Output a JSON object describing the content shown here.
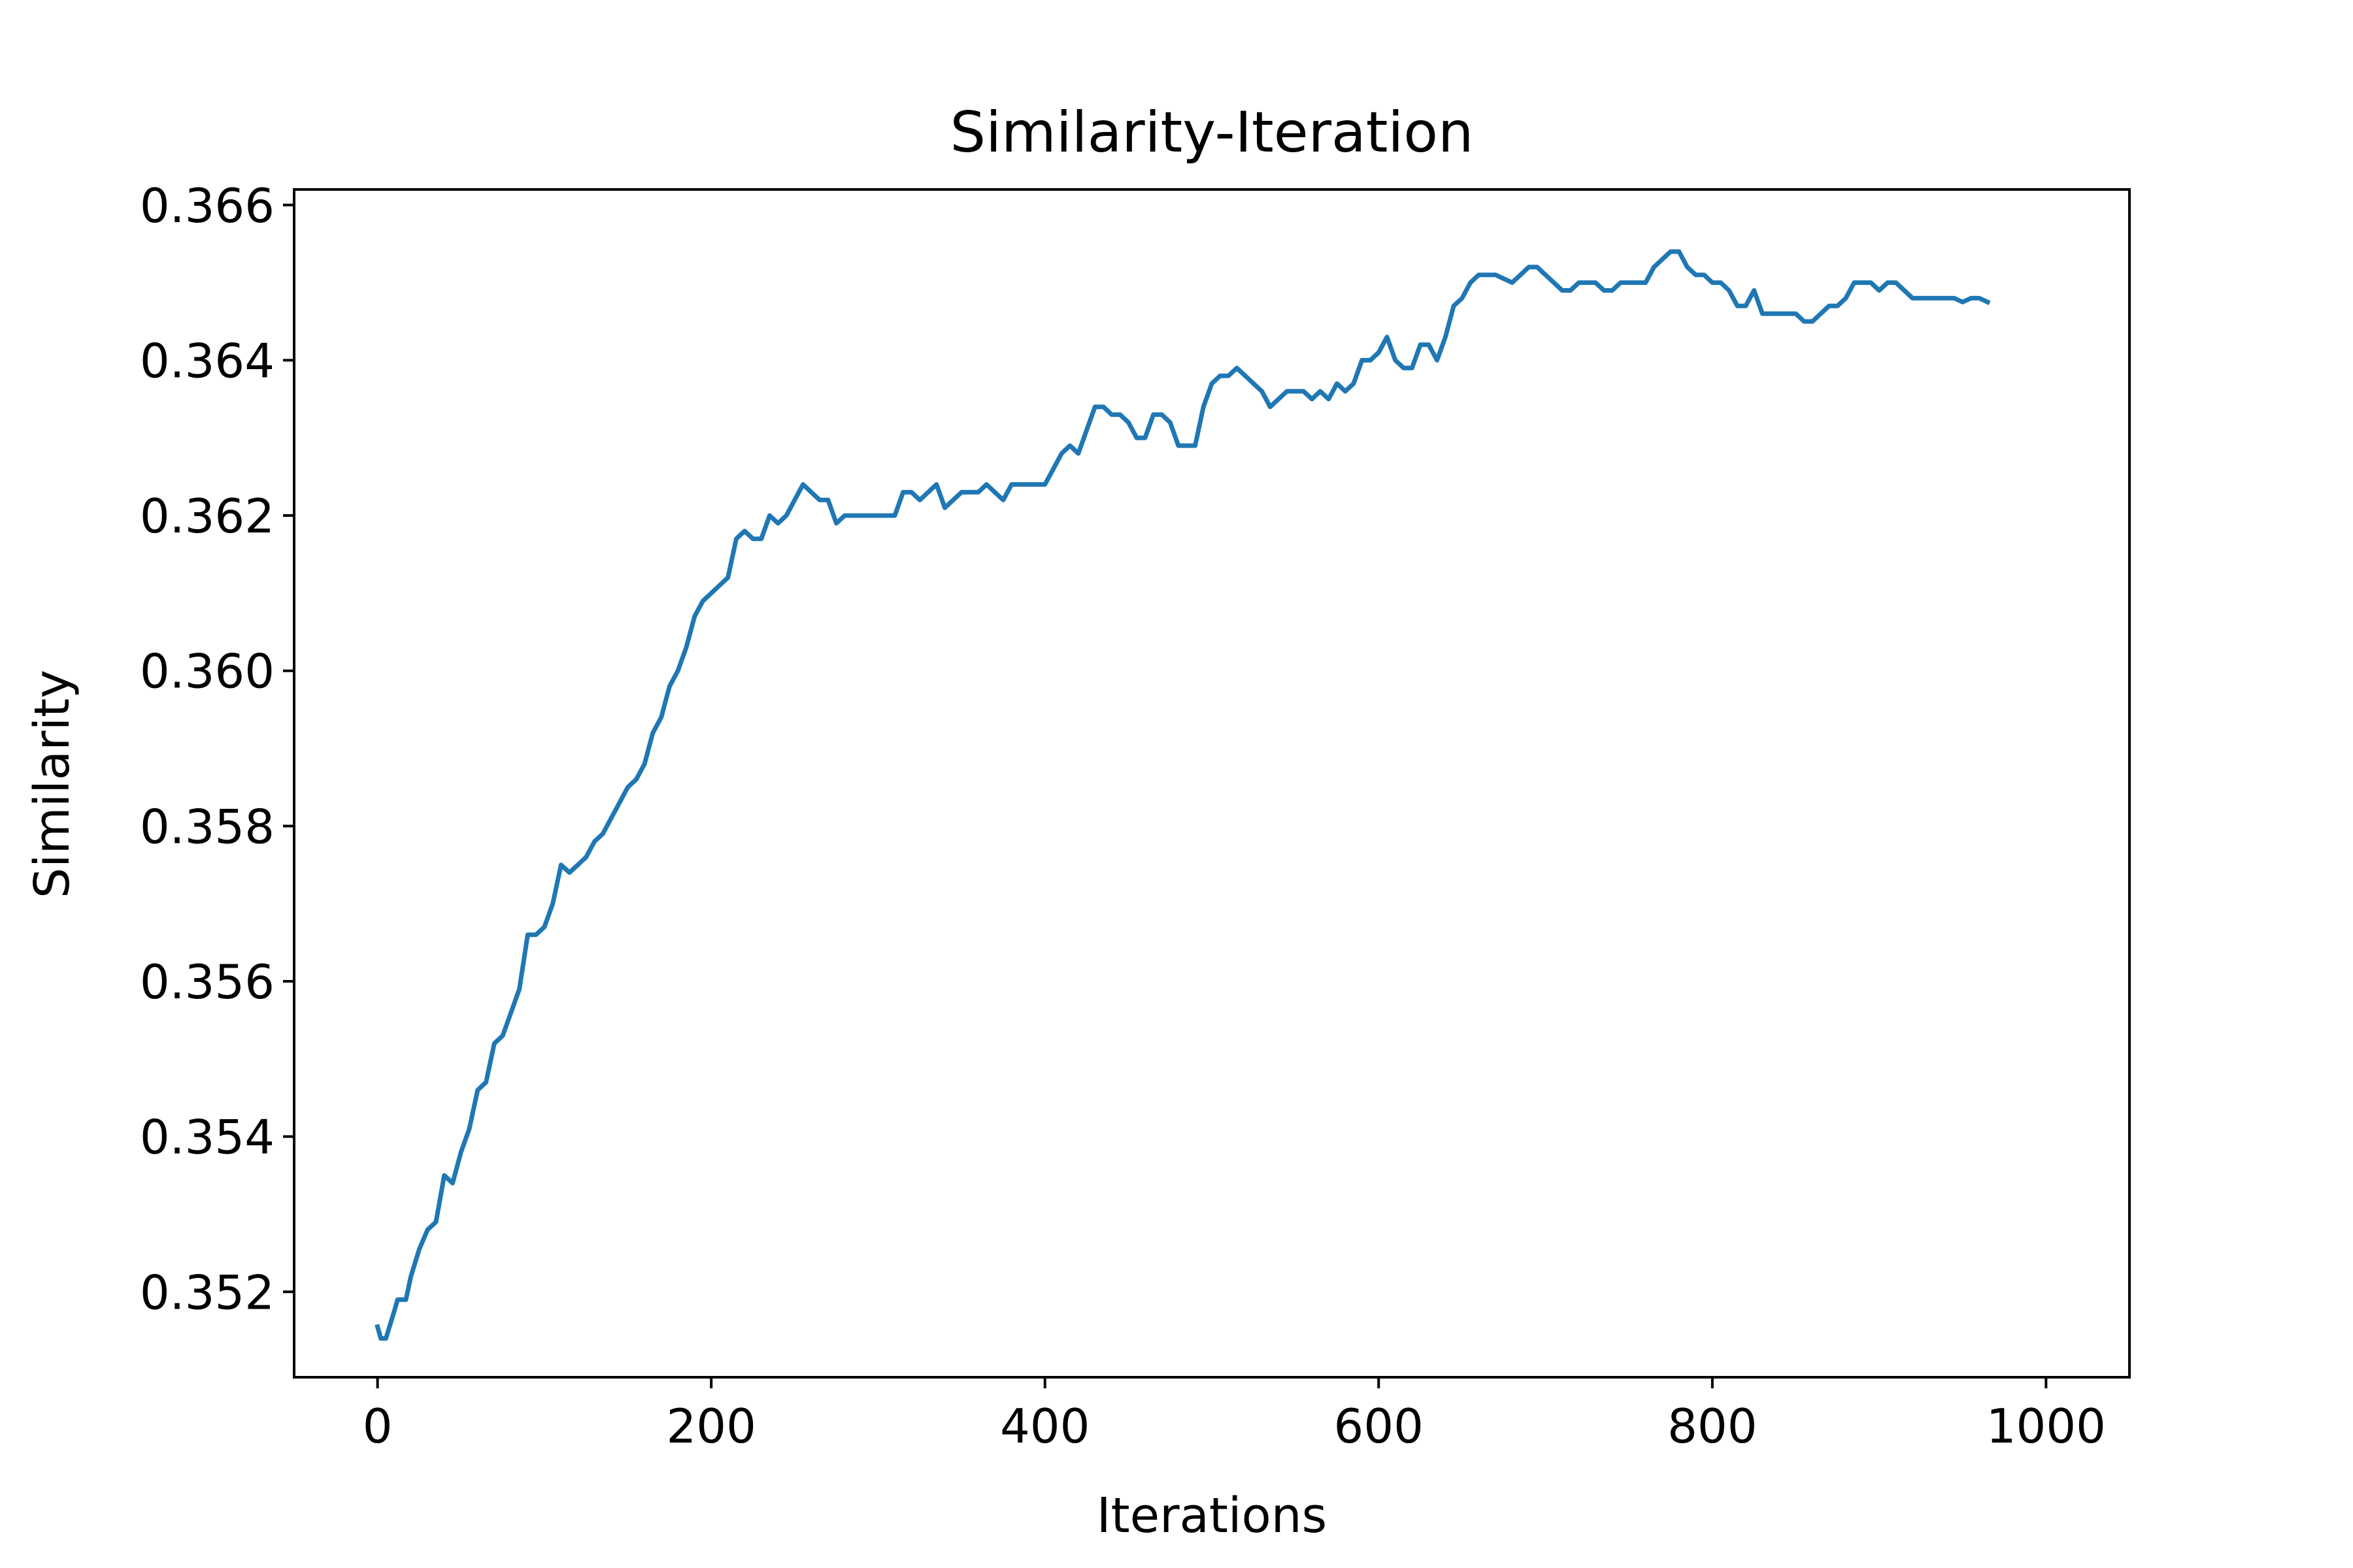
{
  "chart_data": {
    "type": "line",
    "title": "Similarity-Iteration",
    "xlabel": "Iterations",
    "ylabel": "Similarity",
    "xlim": [
      -50,
      1050
    ],
    "ylim": [
      0.3509,
      0.3662
    ],
    "xticks": [
      {
        "value": 0,
        "label": "0"
      },
      {
        "value": 200,
        "label": "200"
      },
      {
        "value": 400,
        "label": "400"
      },
      {
        "value": 600,
        "label": "600"
      },
      {
        "value": 800,
        "label": "800"
      },
      {
        "value": 1000,
        "label": "1000"
      }
    ],
    "yticks": [
      {
        "value": 0.352,
        "label": "0.352"
      },
      {
        "value": 0.354,
        "label": "0.354"
      },
      {
        "value": 0.356,
        "label": "0.356"
      },
      {
        "value": 0.358,
        "label": "0.358"
      },
      {
        "value": 0.36,
        "label": "0.360"
      },
      {
        "value": 0.362,
        "label": "0.362"
      },
      {
        "value": 0.364,
        "label": "0.364"
      },
      {
        "value": 0.366,
        "label": "0.366"
      }
    ],
    "grid": false,
    "series": [
      {
        "color": "#1f77b4",
        "points": [
          [
            0,
            0.35155
          ],
          [
            2,
            0.3514
          ],
          [
            5,
            0.3514
          ],
          [
            10,
            0.35175
          ],
          [
            12,
            0.3519
          ],
          [
            17,
            0.3519
          ],
          [
            20,
            0.3522
          ],
          [
            25,
            0.35255
          ],
          [
            30,
            0.3528
          ],
          [
            35,
            0.3529
          ],
          [
            40,
            0.3535
          ],
          [
            45,
            0.3534
          ],
          [
            50,
            0.3538
          ],
          [
            55,
            0.3541
          ],
          [
            60,
            0.3546
          ],
          [
            65,
            0.3547
          ],
          [
            70,
            0.3552
          ],
          [
            75,
            0.3553
          ],
          [
            80,
            0.3556
          ],
          [
            85,
            0.3559
          ],
          [
            90,
            0.3566
          ],
          [
            95,
            0.3566
          ],
          [
            100,
            0.3567
          ],
          [
            105,
            0.357
          ],
          [
            110,
            0.3575
          ],
          [
            115,
            0.3574
          ],
          [
            120,
            0.3575
          ],
          [
            125,
            0.3576
          ],
          [
            130,
            0.3578
          ],
          [
            135,
            0.3579
          ],
          [
            140,
            0.3581
          ],
          [
            145,
            0.3583
          ],
          [
            150,
            0.3585
          ],
          [
            155,
            0.3586
          ],
          [
            160,
            0.3588
          ],
          [
            165,
            0.3592
          ],
          [
            170,
            0.3594
          ],
          [
            175,
            0.3598
          ],
          [
            180,
            0.36
          ],
          [
            185,
            0.3603
          ],
          [
            190,
            0.3607
          ],
          [
            195,
            0.3609
          ],
          [
            200,
            0.361
          ],
          [
            205,
            0.3611
          ],
          [
            210,
            0.3612
          ],
          [
            215,
            0.3617
          ],
          [
            220,
            0.3618
          ],
          [
            225,
            0.3617
          ],
          [
            230,
            0.3617
          ],
          [
            235,
            0.362
          ],
          [
            240,
            0.3619
          ],
          [
            245,
            0.362
          ],
          [
            250,
            0.3622
          ],
          [
            255,
            0.3624
          ],
          [
            260,
            0.3623
          ],
          [
            265,
            0.3622
          ],
          [
            270,
            0.3622
          ],
          [
            275,
            0.3619
          ],
          [
            280,
            0.362
          ],
          [
            290,
            0.362
          ],
          [
            300,
            0.362
          ],
          [
            310,
            0.362
          ],
          [
            315,
            0.3623
          ],
          [
            320,
            0.3623
          ],
          [
            325,
            0.3622
          ],
          [
            330,
            0.3623
          ],
          [
            335,
            0.3624
          ],
          [
            340,
            0.3621
          ],
          [
            345,
            0.3622
          ],
          [
            350,
            0.3623
          ],
          [
            360,
            0.3623
          ],
          [
            365,
            0.3624
          ],
          [
            370,
            0.3623
          ],
          [
            375,
            0.3622
          ],
          [
            380,
            0.3624
          ],
          [
            390,
            0.3624
          ],
          [
            400,
            0.3624
          ],
          [
            405,
            0.3626
          ],
          [
            410,
            0.3628
          ],
          [
            415,
            0.3629
          ],
          [
            420,
            0.3628
          ],
          [
            425,
            0.3631
          ],
          [
            430,
            0.3634
          ],
          [
            435,
            0.3634
          ],
          [
            440,
            0.3633
          ],
          [
            445,
            0.3633
          ],
          [
            450,
            0.3632
          ],
          [
            455,
            0.363
          ],
          [
            460,
            0.363
          ],
          [
            465,
            0.3633
          ],
          [
            470,
            0.3633
          ],
          [
            475,
            0.3632
          ],
          [
            480,
            0.3629
          ],
          [
            485,
            0.3629
          ],
          [
            490,
            0.3629
          ],
          [
            495,
            0.3634
          ],
          [
            500,
            0.3637
          ],
          [
            505,
            0.3638
          ],
          [
            510,
            0.3638
          ],
          [
            515,
            0.3639
          ],
          [
            520,
            0.3638
          ],
          [
            525,
            0.3637
          ],
          [
            530,
            0.3636
          ],
          [
            535,
            0.3634
          ],
          [
            540,
            0.3635
          ],
          [
            545,
            0.3636
          ],
          [
            550,
            0.3636
          ],
          [
            555,
            0.3636
          ],
          [
            560,
            0.3635
          ],
          [
            565,
            0.3636
          ],
          [
            570,
            0.3635
          ],
          [
            575,
            0.3637
          ],
          [
            580,
            0.3636
          ],
          [
            585,
            0.3637
          ],
          [
            590,
            0.364
          ],
          [
            595,
            0.364
          ],
          [
            600,
            0.3641
          ],
          [
            605,
            0.3643
          ],
          [
            610,
            0.364
          ],
          [
            615,
            0.3639
          ],
          [
            620,
            0.3639
          ],
          [
            625,
            0.3642
          ],
          [
            630,
            0.3642
          ],
          [
            635,
            0.364
          ],
          [
            640,
            0.3643
          ],
          [
            645,
            0.3647
          ],
          [
            650,
            0.3648
          ],
          [
            655,
            0.365
          ],
          [
            660,
            0.3651
          ],
          [
            670,
            0.3651
          ],
          [
            680,
            0.365
          ],
          [
            685,
            0.3651
          ],
          [
            690,
            0.3652
          ],
          [
            695,
            0.3652
          ],
          [
            700,
            0.3651
          ],
          [
            705,
            0.365
          ],
          [
            710,
            0.3649
          ],
          [
            715,
            0.3649
          ],
          [
            720,
            0.365
          ],
          [
            725,
            0.365
          ],
          [
            730,
            0.365
          ],
          [
            735,
            0.3649
          ],
          [
            740,
            0.3649
          ],
          [
            745,
            0.365
          ],
          [
            750,
            0.365
          ],
          [
            755,
            0.365
          ],
          [
            760,
            0.365
          ],
          [
            765,
            0.3652
          ],
          [
            770,
            0.3653
          ],
          [
            775,
            0.3654
          ],
          [
            780,
            0.3654
          ],
          [
            785,
            0.3652
          ],
          [
            790,
            0.3651
          ],
          [
            795,
            0.3651
          ],
          [
            800,
            0.365
          ],
          [
            805,
            0.365
          ],
          [
            810,
            0.3649
          ],
          [
            815,
            0.3647
          ],
          [
            820,
            0.3647
          ],
          [
            825,
            0.3649
          ],
          [
            830,
            0.3646
          ],
          [
            840,
            0.3646
          ],
          [
            850,
            0.3646
          ],
          [
            855,
            0.3645
          ],
          [
            860,
            0.3645
          ],
          [
            865,
            0.3646
          ],
          [
            870,
            0.3647
          ],
          [
            875,
            0.3647
          ],
          [
            880,
            0.3648
          ],
          [
            885,
            0.365
          ],
          [
            890,
            0.365
          ],
          [
            895,
            0.365
          ],
          [
            900,
            0.3649
          ],
          [
            905,
            0.365
          ],
          [
            910,
            0.365
          ],
          [
            915,
            0.3649
          ],
          [
            920,
            0.3648
          ],
          [
            930,
            0.3648
          ],
          [
            940,
            0.3648
          ],
          [
            945,
            0.3648
          ],
          [
            950,
            0.36475
          ],
          [
            955,
            0.3648
          ],
          [
            960,
            0.3648
          ],
          [
            965,
            0.36475
          ]
        ]
      }
    ]
  }
}
